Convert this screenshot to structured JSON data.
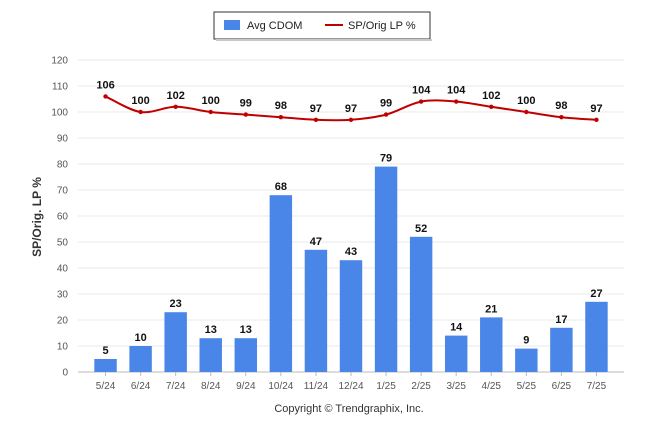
{
  "chart_data": {
    "type": "bar",
    "categories": [
      "5/24",
      "6/24",
      "7/24",
      "8/24",
      "9/24",
      "10/24",
      "11/24",
      "12/24",
      "1/25",
      "2/25",
      "3/25",
      "4/25",
      "5/25",
      "6/25",
      "7/25"
    ],
    "series": [
      {
        "name": "Avg CDOM",
        "type": "bar",
        "color": "#4a86e8",
        "values": [
          5,
          10,
          23,
          13,
          13,
          68,
          47,
          43,
          79,
          52,
          14,
          21,
          9,
          17,
          27
        ]
      },
      {
        "name": "SP/Orig LP %",
        "type": "line",
        "color": "#c00000",
        "values": [
          106,
          100,
          102,
          100,
          99,
          98,
          97,
          97,
          99,
          104,
          104,
          102,
          100,
          98,
          97
        ]
      }
    ],
    "title": "",
    "xlabel": "",
    "ylabel": "SP/Orig. LP %",
    "ylim": [
      0,
      120
    ],
    "yticks": [
      0,
      10,
      20,
      30,
      40,
      50,
      60,
      70,
      80,
      90,
      100,
      110,
      120
    ],
    "grid": true,
    "legend_position": "top-center"
  },
  "footer": {
    "credit": "Copyright © Trendgraphix, Inc."
  }
}
